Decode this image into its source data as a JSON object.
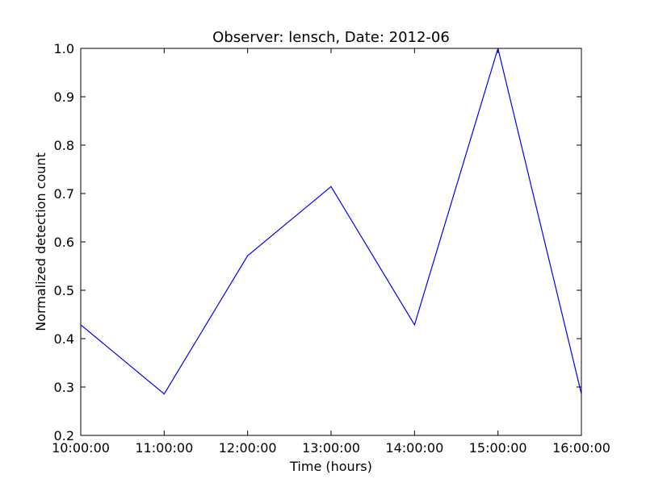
{
  "chart_data": {
    "type": "line",
    "title": "Observer: lensch, Date: 2012-06",
    "xlabel": "Time (hours)",
    "ylabel": "Normalized detection count",
    "x": [
      "10:00:00",
      "11:00:00",
      "12:00:00",
      "13:00:00",
      "14:00:00",
      "15:00:00",
      "16:00:00"
    ],
    "series": [
      {
        "values": [
          0.4286,
          0.2857,
          0.5714,
          0.7143,
          0.4286,
          1.0,
          0.2857
        ],
        "color": "#0000ff"
      }
    ],
    "xlim": [
      "10:00:00",
      "16:00:00"
    ],
    "ylim": [
      0.2,
      1.0
    ],
    "yticks": [
      "0.2",
      "0.3",
      "0.4",
      "0.5",
      "0.6",
      "0.7",
      "0.8",
      "0.9",
      "1.0"
    ],
    "xticks": [
      "10:00:00",
      "11:00:00",
      "12:00:00",
      "13:00:00",
      "14:00:00",
      "15:00:00",
      "16:00:00"
    ],
    "grid": false,
    "legend": false
  }
}
